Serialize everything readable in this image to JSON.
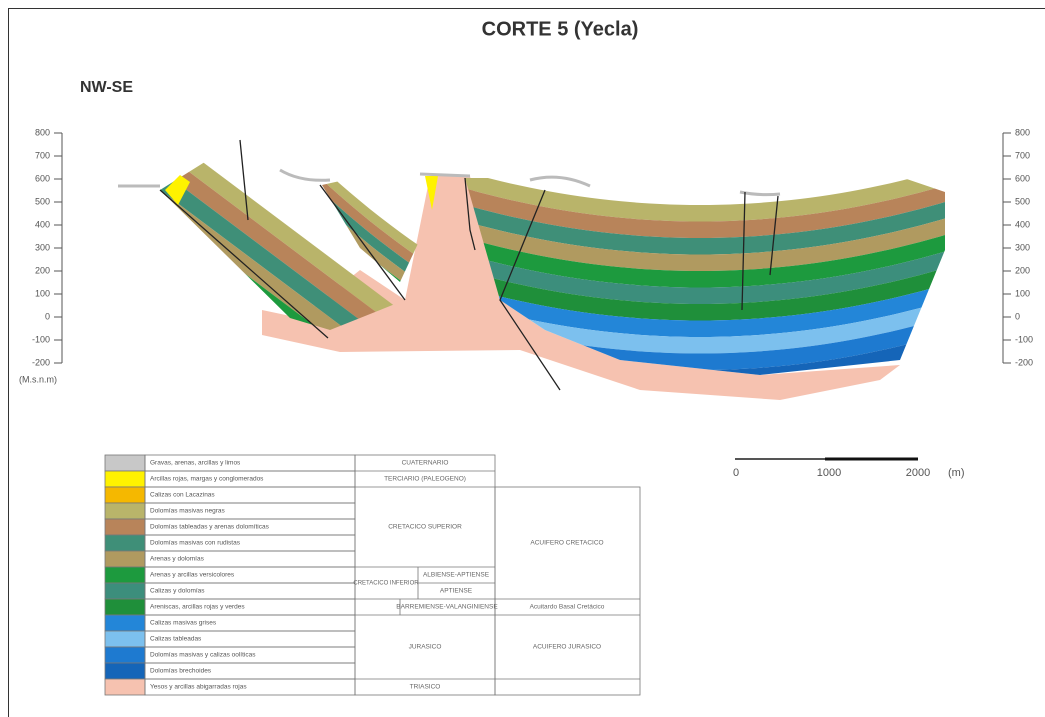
{
  "header": {
    "title": "CORTE 5 (Yecla)",
    "direction": "NW-SE"
  },
  "left_axis": {
    "ticks": [
      800,
      700,
      600,
      500,
      400,
      300,
      200,
      100,
      0,
      -100,
      -200
    ],
    "unit": "(M.s.n.m)"
  },
  "right_axis": {
    "ticks": [
      800,
      700,
      600,
      500,
      400,
      300,
      200,
      100,
      0,
      -100,
      -200
    ]
  },
  "scale_bar": {
    "labels": [
      0,
      1000,
      2000
    ],
    "unit": "(m)"
  },
  "legend": {
    "rows": [
      {
        "color": "#c8c8c8",
        "description": "Gravas, arenas, arcillas y limos"
      },
      {
        "color": "#fff200",
        "description": "Arcillas rojas, margas y conglomerados"
      },
      {
        "color": "#f5b800",
        "description": "Calizas con Lacazinas"
      },
      {
        "color": "#b9b46a",
        "description": "Dolomías masivas negras"
      },
      {
        "color": "#b8845a",
        "description": "Dolomías tableadas y arenas dolomíticas"
      },
      {
        "color": "#3f8f78",
        "description": "Dolomías masivas con rudistas"
      },
      {
        "color": "#b09a60",
        "description": "Arenas y dolomías"
      },
      {
        "color": "#1d9a3e",
        "description": "Arenas y arcillas versicolores"
      },
      {
        "color": "#3c8e7c",
        "description": "Calizas y dolomías"
      },
      {
        "color": "#1f8f3a",
        "description": "Areniscas, arcillas rojas y verdes"
      },
      {
        "color": "#2386d8",
        "description": "Calizas masivas grises"
      },
      {
        "color": "#7cc0ee",
        "description": "Calizas tableadas"
      },
      {
        "color": "#1e7ad0",
        "description": "Dolomías masivas y calizas oolíticas"
      },
      {
        "color": "#1565b8",
        "description": "Dolomías brechoides"
      },
      {
        "color": "#f6c2b0",
        "description": "Yesos y arcillas abigarradas rojas"
      }
    ],
    "ages": [
      "CUATERNARIO",
      "TERCIARIO (PALEOGENO)",
      "CRETACICO SUPERIOR",
      "CRETACICO INFERIOR",
      "ALBIENSE-APTIENSE",
      "APTIENSE",
      "BARREMIENSE-VALANGINIENSE",
      "JURASICO",
      "TRIASICO"
    ],
    "aquifers": [
      "ACUIFERO CRETACICO",
      "Acuitardo Basal Cretácico",
      "ACUIFERO JURASICO"
    ]
  }
}
